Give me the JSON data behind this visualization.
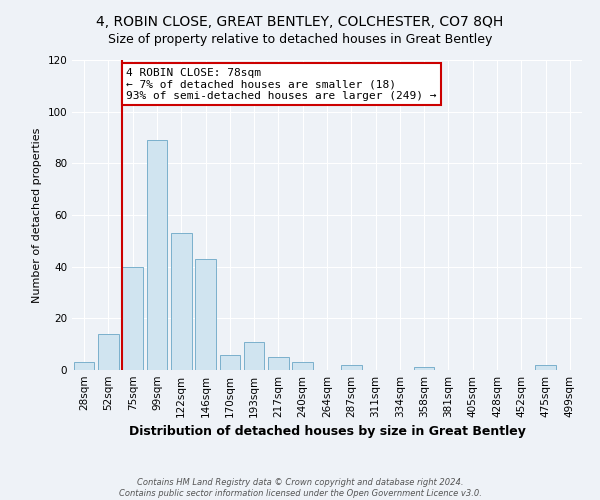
{
  "title": "4, ROBIN CLOSE, GREAT BENTLEY, COLCHESTER, CO7 8QH",
  "subtitle": "Size of property relative to detached houses in Great Bentley",
  "xlabel": "Distribution of detached houses by size in Great Bentley",
  "ylabel": "Number of detached properties",
  "bar_labels": [
    "28sqm",
    "52sqm",
    "75sqm",
    "99sqm",
    "122sqm",
    "146sqm",
    "170sqm",
    "193sqm",
    "217sqm",
    "240sqm",
    "264sqm",
    "287sqm",
    "311sqm",
    "334sqm",
    "358sqm",
    "381sqm",
    "405sqm",
    "428sqm",
    "452sqm",
    "475sqm",
    "499sqm"
  ],
  "bar_values": [
    3,
    14,
    40,
    89,
    53,
    43,
    6,
    11,
    5,
    3,
    0,
    2,
    0,
    0,
    1,
    0,
    0,
    0,
    0,
    2,
    0
  ],
  "bar_color": "#d0e4f0",
  "bar_edge_color": "#7ab0cc",
  "ylim": [
    0,
    120
  ],
  "yticks": [
    0,
    20,
    40,
    60,
    80,
    100,
    120
  ],
  "annotation_line1": "4 ROBIN CLOSE: 78sqm",
  "annotation_line2": "← 7% of detached houses are smaller (18)",
  "annotation_line3": "93% of semi-detached houses are larger (249) →",
  "annotation_box_color": "#ffffff",
  "annotation_box_edge": "#cc0000",
  "vline_color": "#cc0000",
  "vline_xindex": 2,
  "footer_line1": "Contains HM Land Registry data © Crown copyright and database right 2024.",
  "footer_line2": "Contains public sector information licensed under the Open Government Licence v3.0.",
  "background_color": "#eef2f7",
  "grid_color": "#ffffff",
  "title_fontsize": 10,
  "subtitle_fontsize": 9,
  "xlabel_fontsize": 9,
  "ylabel_fontsize": 8,
  "tick_fontsize": 7.5,
  "footer_fontsize": 6
}
